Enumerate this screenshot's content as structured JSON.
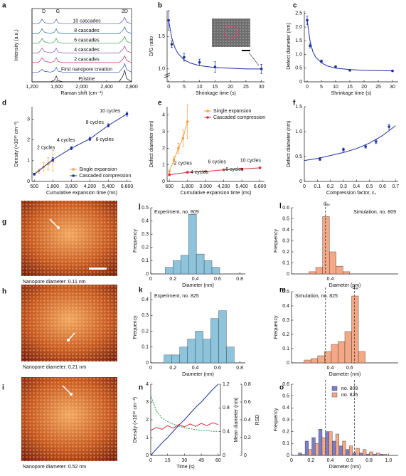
{
  "chart_data": [
    {
      "panel": "a",
      "type": "line",
      "xlabel": "Raman shift (cm⁻¹)",
      "ylabel": "Intensity (a.u.)",
      "xlim": [
        1200,
        2800
      ],
      "xticks": [
        {
          "value": 1200,
          "label": "1,200"
        },
        {
          "value": 1600,
          "label": "1,600"
        },
        {
          "value": 2000,
          "label": "2,000"
        },
        {
          "value": 2400,
          "label": "2,400"
        },
        {
          "value": 2800,
          "label": "2,800"
        }
      ],
      "ylim": [
        0,
        7.6
      ],
      "legend": "inline",
      "annotations": [
        "D",
        "G",
        "2D"
      ],
      "x": [
        1200,
        1300,
        1340,
        1360,
        1400,
        1500,
        1560,
        1590,
        1620,
        1700,
        2000,
        2400,
        2600,
        2660,
        2690,
        2720,
        2800
      ],
      "series": [
        {
          "name": "10 cascades",
          "color": "#4a5fc8",
          "style": "line",
          "values": [
            6,
            6,
            6.25,
            6.5,
            6.15,
            6,
            6.15,
            6.5,
            6.1,
            6,
            6,
            6,
            6,
            6.35,
            6.7,
            6.21,
            6
          ]
        },
        {
          "name": "8 cascades",
          "color": "#2a6f8f",
          "style": "line",
          "values": [
            5,
            5,
            5.25,
            5.5,
            5.15,
            5,
            5.15,
            5.5,
            5.1,
            5,
            5,
            5,
            5,
            5.35,
            5.7,
            5.21,
            5
          ]
        },
        {
          "name": "6 cascades",
          "color": "#2fa04a",
          "style": "line",
          "values": [
            4,
            4,
            4.25,
            4.5,
            4.15,
            4,
            4.15,
            4.5,
            4.1,
            4,
            4,
            4,
            4,
            4.35,
            4.7,
            4.21,
            4
          ]
        },
        {
          "name": "4 cascades",
          "color": "#8a4fb0",
          "style": "line",
          "values": [
            3,
            3,
            3.25,
            3.5,
            3.15,
            3,
            3.15,
            3.5,
            3.1,
            3,
            3,
            3,
            3,
            3.35,
            3.7,
            3.21,
            3
          ]
        },
        {
          "name": "2 cascades",
          "color": "#c8305a",
          "style": "line",
          "values": [
            2,
            2,
            2.25,
            2.5,
            2.15,
            2,
            2.15,
            2.5,
            2.1,
            2,
            2,
            2,
            2,
            2.35,
            2.7,
            2.21,
            2
          ]
        },
        {
          "name": "First nanopore creation",
          "color": "#2e4fb8",
          "style": "line",
          "values": [
            1,
            1,
            1.15,
            1.3,
            1.09,
            1,
            1.15,
            1.5,
            1.1,
            1,
            1,
            1,
            1,
            1.45,
            1.9,
            1.27,
            1
          ]
        },
        {
          "name": "Pristine",
          "color": "#111111",
          "style": "line",
          "values": [
            0,
            0,
            0,
            0,
            0,
            0,
            0.18,
            0.6,
            0.12,
            0,
            0,
            0,
            0,
            0.6,
            1.2,
            0.36,
            0
          ]
        }
      ]
    },
    {
      "panel": "b",
      "type": "line",
      "xlabel": "Shrinkage time (s)",
      "ylabel": "D/G ratio",
      "xlim": [
        -0.5,
        31
      ],
      "xticks": [
        0,
        5,
        10,
        15,
        20,
        25,
        30
      ],
      "ylim": [
        0.8,
        1.9
      ],
      "yticks": [
        {
          "value": 1,
          "label": "1.0"
        },
        1.5
      ],
      "series": [
        {
          "color": "#1f2f9e",
          "style": "markers",
          "x": [
            0,
            1,
            5,
            10,
            15,
            30
          ],
          "values": [
            1.75,
            1.38,
            1.18,
            1.1,
            1.03,
            1.0
          ],
          "errors": [
            0.15,
            0.05,
            0.06,
            0.05,
            0.08,
            0.07
          ]
        },
        {
          "color": "#1f2f9e",
          "style": "line",
          "x": [
            0,
            1,
            2,
            3,
            5,
            7,
            10,
            15,
            20,
            25,
            30
          ],
          "values": [
            1.75,
            1.48,
            1.33,
            1.24,
            1.14,
            1.09,
            1.05,
            1.02,
            1.01,
            1,
            1
          ]
        }
      ]
    },
    {
      "panel": "c",
      "type": "line",
      "xlabel": "Shrinkage time (s)",
      "ylabel": "Defect diameter (nm)",
      "xlim": [
        -1,
        32
      ],
      "xticks": [
        0,
        5,
        10,
        15,
        20,
        25,
        30
      ],
      "ylim": [
        0,
        2.6
      ],
      "yticks": [
        0,
        0.5,
        {
          "value": 1,
          "label": "1.0"
        },
        1.5,
        {
          "value": 2,
          "label": "2.0"
        },
        2.5
      ],
      "series": [
        {
          "color": "#1f2f9e",
          "style": "markers",
          "x": [
            0,
            1,
            5,
            10,
            15,
            30
          ],
          "values": [
            2.25,
            1.32,
            0.75,
            0.55,
            0.42,
            0.4
          ],
          "errors": [
            0.15,
            0.08,
            0.05,
            0.04,
            0.03,
            0.03
          ]
        },
        {
          "color": "#1f2f9e",
          "style": "line",
          "x": [
            0,
            1,
            2,
            3,
            5,
            7,
            10,
            15,
            20,
            25,
            30
          ],
          "values": [
            2.25,
            1.5,
            1.1,
            0.9,
            0.7,
            0.58,
            0.5,
            0.45,
            0.42,
            0.41,
            0.4
          ]
        }
      ]
    },
    {
      "panel": "d",
      "type": "line",
      "xlabel": "Cumulative expansion time (ms)",
      "ylabel": "Density (×10¹² cm⁻²)",
      "xlim": [
        450,
        6900
      ],
      "xticks": [
        600,
        {
          "value": 1800,
          "label": "1,800"
        },
        {
          "value": 3000,
          "label": "3,000"
        },
        {
          "value": 4200,
          "label": "4,200"
        },
        {
          "value": 5400,
          "label": "5,400"
        },
        {
          "value": 6600,
          "label": "6,600"
        }
      ],
      "ylim": [
        0,
        3.6
      ],
      "yticks": [
        0,
        1,
        2,
        3
      ],
      "legend": "lower right",
      "annotations": [
        "2 cycles",
        "4 cycles",
        "6 cycles",
        "8 cycles",
        "10 cycles"
      ],
      "series": [
        {
          "name": "Single expansion",
          "color": "#f0a040",
          "style": "markers+line",
          "x": [
            600,
            900,
            1200,
            1500,
            1800
          ],
          "values": [
            0.35,
            0.5,
            0.7,
            0.85,
            1.0
          ],
          "errors": [
            0.05,
            0.1,
            0.2,
            0.3,
            0.5
          ]
        },
        {
          "name": "Cascaded compression",
          "color": "#1f2f9e",
          "style": "markers+line",
          "x": [
            600,
            1800,
            3000,
            4200,
            5400,
            6600
          ],
          "values": [
            0.35,
            1.05,
            1.6,
            2.05,
            2.7,
            3.25
          ],
          "errors": [
            0.05,
            0.1,
            0.08,
            0.08,
            0.08,
            0.1
          ]
        }
      ]
    },
    {
      "panel": "e",
      "type": "line",
      "xlabel": "Cumulative expansion time (ms)",
      "ylabel": "Defect diameter (nm)",
      "xlim": [
        450,
        6900
      ],
      "xticks": [
        600,
        {
          "value": 1800,
          "label": "1,800"
        },
        {
          "value": 3000,
          "label": "3,000"
        },
        {
          "value": 4200,
          "label": "4,200"
        },
        {
          "value": 5400,
          "label": "5,400"
        },
        {
          "value": 6600,
          "label": "6,600"
        }
      ],
      "ylim": [
        0,
        4.5
      ],
      "yticks": [
        0,
        1,
        2,
        3,
        4
      ],
      "legend": "upper right",
      "annotations": [
        "2 cycles",
        "4 cycles",
        "6 cycles",
        "8 cycles",
        "10 cycles"
      ],
      "series": [
        {
          "name": "Single expansion",
          "color": "#f0a040",
          "style": "markers+line",
          "x": [
            600,
            900,
            1200,
            1500,
            1800
          ],
          "values": [
            0.6,
            1.3,
            2.0,
            2.6,
            3.6
          ],
          "errors": [
            0.1,
            0.2,
            0.3,
            0.5,
            1.0
          ]
        },
        {
          "name": "Cascaded compression",
          "color": "#d0303c",
          "style": "markers+line",
          "x": [
            600,
            1800,
            3000,
            4200,
            5400,
            6600
          ],
          "values": [
            0.4,
            0.55,
            0.6,
            0.7,
            0.75,
            0.82
          ],
          "errors": [
            0.05,
            0.05,
            0.05,
            0.05,
            0.05,
            0.05
          ]
        }
      ]
    },
    {
      "panel": "f",
      "type": "line",
      "xlabel": "Compression factor, εₛ",
      "ylabel": "Defect diameter (nm)",
      "xlim": [
        0,
        0.72
      ],
      "xticks": [
        0,
        0.1,
        0.2,
        0.3,
        0.4,
        0.5,
        0.6,
        0.7
      ],
      "ylim": [
        0,
        1.5
      ],
      "yticks": [
        0,
        0.5,
        {
          "value": 1,
          "label": "1.0"
        },
        1.5
      ],
      "series": [
        {
          "color": "#1f2f9e",
          "style": "markers",
          "x": [
            0.12,
            0.3,
            0.47,
            0.55,
            0.65
          ],
          "values": [
            0.45,
            0.64,
            0.7,
            0.8,
            1.1
          ],
          "errors": [
            0.03,
            0.03,
            0.03,
            0.04,
            0.05
          ]
        },
        {
          "color": "#1f2f9e",
          "style": "line",
          "x": [
            0,
            0.1,
            0.2,
            0.3,
            0.4,
            0.5,
            0.6,
            0.7
          ],
          "values": [
            0.42,
            0.46,
            0.52,
            0.58,
            0.66,
            0.77,
            0.92,
            1.12
          ]
        }
      ]
    },
    {
      "panel": "g",
      "type": "image",
      "caption": "Nanopore diameter: 0.11 nm"
    },
    {
      "panel": "j",
      "type": "histogram",
      "title": "Experiment, no. 809",
      "xlabel": "Diameter (nm)",
      "ylabel": "Frequency",
      "xlim": [
        0,
        0.85
      ],
      "xticks": [
        0,
        0.2,
        0.4,
        0.6,
        0.8
      ],
      "ylim": [
        0,
        0.5
      ],
      "yticks": [
        0,
        0.1,
        0.2,
        0.3,
        0.4,
        0.5
      ],
      "bins": [
        0.13,
        0.2,
        0.27,
        0.34,
        0.41,
        0.48,
        0.55,
        0.62
      ],
      "series": [
        {
          "color": "#8ec3dc",
          "values": [
            0.05,
            0.1,
            0.14,
            0.45,
            0.15,
            0.1,
            0.05
          ]
        }
      ]
    },
    {
      "panel": "l",
      "type": "histogram",
      "title": "Simulation, no. 809",
      "xlabel": "Diameter (nm)",
      "ylabel": "Frequency",
      "xlim": [
        0,
        1.1
      ],
      "xticks": [
        0.4
      ],
      "ylim": [
        0,
        0.6
      ],
      "yticks": [
        0,
        0.1,
        0.2,
        0.3,
        0.4,
        0.5,
        0.6
      ],
      "bins": [
        0.18,
        0.25,
        0.32,
        0.39,
        0.46,
        0.53,
        0.6
      ],
      "vlines": [
        0.35
      ],
      "annotations": [
        "dₐᵥ"
      ],
      "series": [
        {
          "color": "#f4a886",
          "values": [
            0.02,
            0.06,
            0.52,
            0.2,
            0.07,
            0.02
          ]
        }
      ]
    },
    {
      "panel": "h",
      "type": "image",
      "caption": "Nanopore diameter: 0.21 nm"
    },
    {
      "panel": "k",
      "type": "histogram",
      "title": "Experiment, no. 825",
      "xlabel": "Diameter (nm)",
      "ylabel": "Frequency",
      "xlim": [
        0,
        0.85
      ],
      "xticks": [
        0,
        0.2,
        0.4,
        0.6,
        0.8
      ],
      "ylim": [
        0,
        0.45
      ],
      "yticks": [
        0,
        0.1,
        0.2,
        0.3,
        0.4
      ],
      "bins": [
        0.12,
        0.19,
        0.26,
        0.33,
        0.4,
        0.47,
        0.54,
        0.61,
        0.68,
        0.75
      ],
      "series": [
        {
          "color": "#8ec3dc",
          "values": [
            0.05,
            0.05,
            0.1,
            0.15,
            0.2,
            0.15,
            0.28,
            0.33,
            0.1
          ]
        }
      ]
    },
    {
      "panel": "m",
      "type": "histogram",
      "title": "Simulation, no. 825",
      "xlabel": "Diameter (nm)",
      "ylabel": "Frequency",
      "xlim": [
        0,
        1.1
      ],
      "xticks": [
        0.4,
        0.6
      ],
      "ylim": [
        0,
        0.5
      ],
      "yticks": [
        0,
        0.1,
        0.2,
        0.3,
        0.4,
        0.5
      ],
      "bins": [
        0.13,
        0.2,
        0.27,
        0.34,
        0.41,
        0.48,
        0.55,
        0.62,
        0.69,
        0.76
      ],
      "vlines": [
        0.35,
        0.65
      ],
      "annotations": [
        "dₐᵥ"
      ],
      "series": [
        {
          "color": "#f4a886",
          "values": [
            0.02,
            0.03,
            0.05,
            0.08,
            0.13,
            0.15,
            0.22,
            0.47,
            0.08
          ]
        }
      ]
    },
    {
      "panel": "i",
      "type": "image",
      "caption": "Nanopore diameter: 0.52 nm"
    },
    {
      "panel": "n",
      "type": "line",
      "xlabel": "Time (s)",
      "ylabel": "Density (×10¹⁰ cm⁻²)",
      "y2label": "Mean diameter (nm)",
      "y3label": "RSD",
      "xlim": [
        0,
        62
      ],
      "xticks": [
        0,
        15,
        30,
        45,
        60
      ],
      "ylim": [
        0,
        4
      ],
      "yticks": [
        0,
        1,
        2,
        3,
        4
      ],
      "y2lim": [
        0,
        1.2
      ],
      "y2ticks": [
        0,
        0.4,
        0.8,
        1.2
      ],
      "y3lim": [
        0,
        0.8
      ],
      "y3ticks": [
        0,
        0.2,
        0.4,
        0.6,
        0.8
      ],
      "x": [
        0,
        5,
        10,
        15,
        20,
        25,
        30,
        35,
        40,
        45,
        50,
        55,
        60
      ],
      "series": [
        {
          "color": "#1f2f9e",
          "style": "line",
          "values": [
            0,
            0.35,
            0.7,
            1.0,
            1.35,
            1.7,
            2.0,
            2.35,
            2.7,
            3.0,
            3.35,
            3.7,
            4.0
          ]
        },
        {
          "color": "#d0303c",
          "style": "line",
          "axis": "y2",
          "values": [
            0.42,
            0.47,
            0.44,
            0.5,
            0.46,
            0.52,
            0.48,
            0.53,
            0.49,
            0.54,
            0.5,
            0.55,
            0.52
          ]
        },
        {
          "color": "#2a9a4a",
          "style": "dashed",
          "axis": "y3",
          "values": [
            0.68,
            0.5,
            0.42,
            0.38,
            0.35,
            0.33,
            0.31,
            0.3,
            0.29,
            0.28,
            0.28,
            0.27,
            0.27
          ]
        }
      ]
    },
    {
      "panel": "o",
      "type": "histogram",
      "xlabel": "Diameter (nm)",
      "ylabel": "Frequency",
      "xlim": [
        0,
        1.1
      ],
      "xticks": [
        0,
        0.2,
        0.4,
        0.6,
        0.8,
        {
          "value": 1,
          "label": "1.0"
        }
      ],
      "ylim": [
        0,
        0.6
      ],
      "yticks": [
        0,
        0.1,
        0.2,
        0.3,
        0.4,
        0.5,
        0.6
      ],
      "bins": [
        0.07,
        0.14,
        0.21,
        0.28,
        0.35,
        0.42,
        0.49,
        0.56,
        0.63,
        0.7,
        0.77,
        0.84,
        0.91,
        0.98
      ],
      "vlines": [
        0.35,
        0.65
      ],
      "legend": "upper right",
      "series": [
        {
          "name": "no. 809",
          "color": "#7a7ec8",
          "values": [
            0.02,
            0.12,
            0.15,
            0.22,
            0.2,
            0.12,
            0.08,
            0.05,
            0.02,
            0.02,
            0.01,
            0.01,
            0.01
          ]
        },
        {
          "name": "no. 825",
          "color": "#f4a886",
          "values": [
            0.01,
            0.05,
            0.1,
            0.15,
            0.2,
            0.18,
            0.12,
            0.08,
            0.06,
            0.05,
            0.03,
            0.02,
            0.01
          ]
        }
      ]
    }
  ]
}
